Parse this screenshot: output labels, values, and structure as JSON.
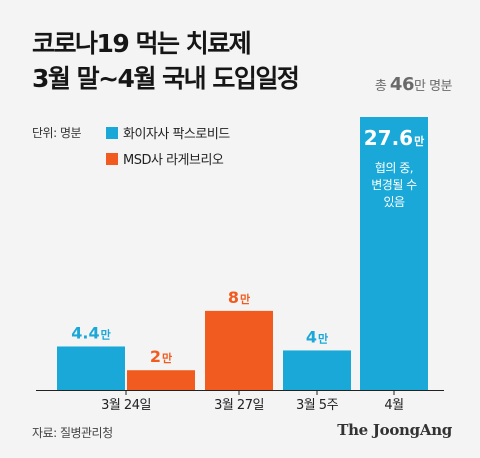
{
  "header": {
    "title_line1": "코로나19 먹는 치료제",
    "title_line2": "3월 말~4월 국내 도입일정",
    "total_prefix": "총",
    "total_value": "46",
    "total_suffix": "만 명분"
  },
  "unit_label": "단위: 명분",
  "footer": {
    "source": "자료: 질병관리청",
    "brand": "The JoongAng"
  },
  "chart_data": {
    "type": "bar",
    "series": [
      {
        "name": "화이자사 팍스로비드",
        "color": "#1aa8d8"
      },
      {
        "name": "MSD사 라게브리오",
        "color": "#f25b1f"
      }
    ],
    "bars": [
      {
        "value": 4.4,
        "label": "4.4",
        "unit": "만",
        "series": 0
      },
      {
        "value": 2,
        "label": "2",
        "unit": "만",
        "series": 1
      },
      {
        "value": 8,
        "label": "8",
        "unit": "만",
        "series": 1
      },
      {
        "value": 4,
        "label": "4",
        "unit": "만",
        "series": 0
      },
      {
        "value": 27.6,
        "label": "27.6",
        "unit": "만",
        "series": 0,
        "note": [
          "협의 중,",
          "변경될 수",
          "있음"
        ]
      }
    ],
    "categories": [
      {
        "label": "3월 24일",
        "bars": [
          0,
          1
        ]
      },
      {
        "label": "3월 27일",
        "bars": [
          2
        ]
      },
      {
        "label": "3월 5주",
        "bars": [
          3
        ]
      },
      {
        "label": "4월",
        "bars": [
          4
        ]
      }
    ]
  }
}
